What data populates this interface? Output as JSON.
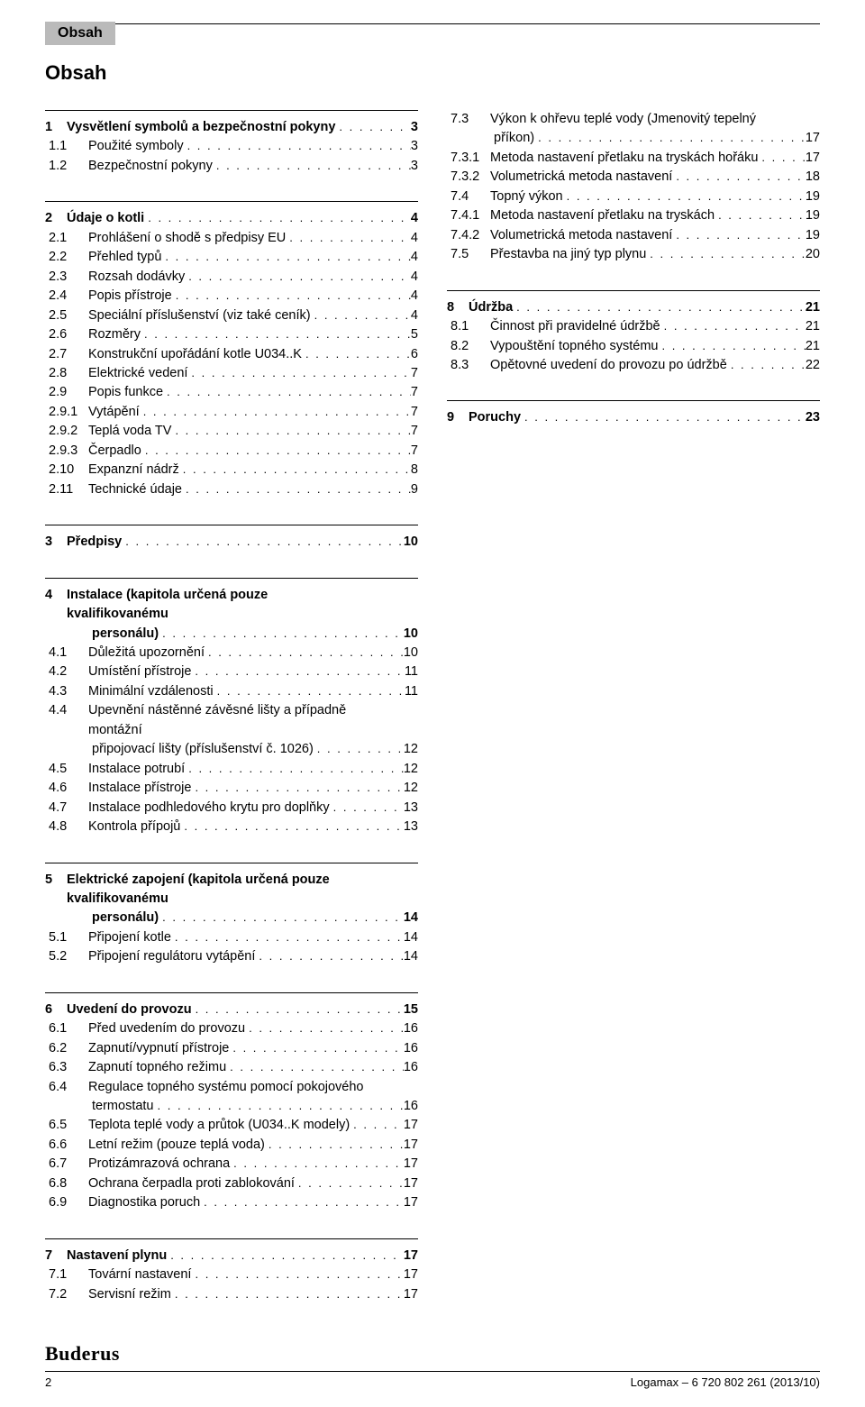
{
  "header_tab": "Obsah",
  "page_title": "Obsah",
  "footer_logo": "Buderus",
  "footer_page": "2",
  "footer_doc": "Logamax – 6 720 802 261 (2013/10)",
  "left": [
    {
      "rule": true,
      "chapter": {
        "n": "1",
        "t": "Vysvětlení symbolů a bezpečnostní pokyny",
        "p": "3"
      },
      "subs": [
        {
          "n": "1.1",
          "t": "Použité symboly",
          "p": "3"
        },
        {
          "n": "1.2",
          "t": "Bezpečnostní pokyny",
          "p": "3"
        }
      ]
    },
    {
      "rule": true,
      "chapter": {
        "n": "2",
        "t": "Údaje o kotli",
        "p": "4"
      },
      "subs": [
        {
          "n": "2.1",
          "t": "Prohlášení o shodě s předpisy EU",
          "p": "4"
        },
        {
          "n": "2.2",
          "t": "Přehled typů",
          "p": "4"
        },
        {
          "n": "2.3",
          "t": "Rozsah dodávky",
          "p": "4"
        },
        {
          "n": "2.4",
          "t": "Popis přístroje",
          "p": "4"
        },
        {
          "n": "2.5",
          "t": "Speciální příslušenství (viz také ceník)",
          "p": "4"
        },
        {
          "n": "2.6",
          "t": "Rozměry",
          "p": "5"
        },
        {
          "n": "2.7",
          "t": "Konstrukční upořádání kotle U034..K",
          "p": "6"
        },
        {
          "n": "2.8",
          "t": "Elektrické vedení",
          "p": "7"
        },
        {
          "n": "2.9",
          "t": "Popis funkce",
          "p": "7"
        },
        {
          "n": "2.9.1",
          "t": "Vytápění",
          "p": "7"
        },
        {
          "n": "2.9.2",
          "t": "Teplá voda TV",
          "p": "7"
        },
        {
          "n": "2.9.3",
          "t": "Čerpadlo",
          "p": "7"
        },
        {
          "n": "2.10",
          "t": "Expanzní nádrž",
          "p": "8"
        },
        {
          "n": "2.11",
          "t": "Technické údaje",
          "p": "9"
        }
      ]
    },
    {
      "rule": true,
      "chapter": {
        "n": "3",
        "t": "Předpisy",
        "p": "10"
      },
      "subs": []
    },
    {
      "rule": true,
      "chapter": {
        "n": "4",
        "t": "Instalace (kapitola určená pouze kvalifikovanému",
        "t2": "personálu)",
        "p": "10"
      },
      "subs": [
        {
          "n": "4.1",
          "t": "Důležitá upozornění",
          "p": "10"
        },
        {
          "n": "4.2",
          "t": "Umístění přístroje",
          "p": "11"
        },
        {
          "n": "4.3",
          "t": "Minimální vzdálenosti",
          "p": "11"
        },
        {
          "n": "4.4",
          "t": "Upevnění nástěnné závěsné lišty a případně montážní",
          "t2": "připojovací lišty (příslušenství č. 1026)",
          "p": "12"
        },
        {
          "n": "4.5",
          "t": "Instalace potrubí",
          "p": "12"
        },
        {
          "n": "4.6",
          "t": "Instalace přístroje",
          "p": "12"
        },
        {
          "n": "4.7",
          "t": "Instalace podhledového krytu pro doplňky",
          "p": "13"
        },
        {
          "n": "4.8",
          "t": "Kontrola přípojů",
          "p": "13"
        }
      ]
    },
    {
      "rule": true,
      "chapter": {
        "n": "5",
        "t": "Elektrické zapojení (kapitola určená pouze kvalifikovanému",
        "t2": "personálu)",
        "p": "14"
      },
      "subs": [
        {
          "n": "5.1",
          "t": "Připojení kotle",
          "p": "14"
        },
        {
          "n": "5.2",
          "t": "Připojení regulátoru vytápění",
          "p": "14"
        }
      ]
    },
    {
      "rule": true,
      "chapter": {
        "n": "6",
        "t": "Uvedení do provozu",
        "p": "15"
      },
      "subs": [
        {
          "n": "6.1",
          "t": "Před uvedením do provozu",
          "p": "16"
        },
        {
          "n": "6.2",
          "t": "Zapnutí/vypnutí přístroje",
          "p": "16"
        },
        {
          "n": "6.3",
          "t": "Zapnutí topného režimu",
          "p": "16"
        },
        {
          "n": "6.4",
          "t": "Regulace topného systému pomocí pokojového",
          "t2": "termostatu",
          "p": "16"
        },
        {
          "n": "6.5",
          "t": "Teplota teplé vody a průtok (U034..K modely)",
          "p": "17"
        },
        {
          "n": "6.6",
          "t": "Letní režim (pouze teplá voda)",
          "p": "17"
        },
        {
          "n": "6.7",
          "t": "Protizámrazová ochrana",
          "p": "17"
        },
        {
          "n": "6.8",
          "t": "Ochrana čerpadla proti zablokování",
          "p": "17"
        },
        {
          "n": "6.9",
          "t": "Diagnostika poruch",
          "p": "17"
        }
      ]
    },
    {
      "rule": true,
      "chapter": {
        "n": "7",
        "t": "Nastavení plynu",
        "p": "17"
      },
      "subs": [
        {
          "n": "7.1",
          "t": "Tovární nastavení",
          "p": "17"
        },
        {
          "n": "7.2",
          "t": "Servisní režim",
          "p": "17"
        }
      ]
    }
  ],
  "right": [
    {
      "rule": false,
      "chapter": null,
      "subs": [
        {
          "n": "7.3",
          "t": "Výkon k ohřevu teplé vody (Jmenovitý tepelný",
          "t2": "příkon)",
          "p": "17"
        },
        {
          "n": "7.3.1",
          "t": "Metoda nastavení přetlaku na tryskách hořáku",
          "p": "17"
        },
        {
          "n": "7.3.2",
          "t": "Volumetrická metoda nastavení",
          "p": "18"
        },
        {
          "n": "7.4",
          "t": "Topný výkon",
          "p": "19"
        },
        {
          "n": "7.4.1",
          "t": "Metoda nastavení přetlaku na tryskách",
          "p": "19"
        },
        {
          "n": "7.4.2",
          "t": "Volumetrická metoda nastavení",
          "p": "19"
        },
        {
          "n": "7.5",
          "t": "Přestavba na jiný typ plynu",
          "p": "20"
        }
      ]
    },
    {
      "rule": true,
      "chapter": {
        "n": "8",
        "t": "Údržba",
        "p": "21"
      },
      "subs": [
        {
          "n": "8.1",
          "t": "Činnost při pravidelné údržbě",
          "p": "21"
        },
        {
          "n": "8.2",
          "t": "Vypouštění topného systému",
          "p": "21"
        },
        {
          "n": "8.3",
          "t": "Opětovné uvedení do provozu po údržbě",
          "p": "22"
        }
      ]
    },
    {
      "rule": true,
      "chapter": {
        "n": "9",
        "t": "Poruchy",
        "p": "23"
      },
      "subs": []
    }
  ]
}
